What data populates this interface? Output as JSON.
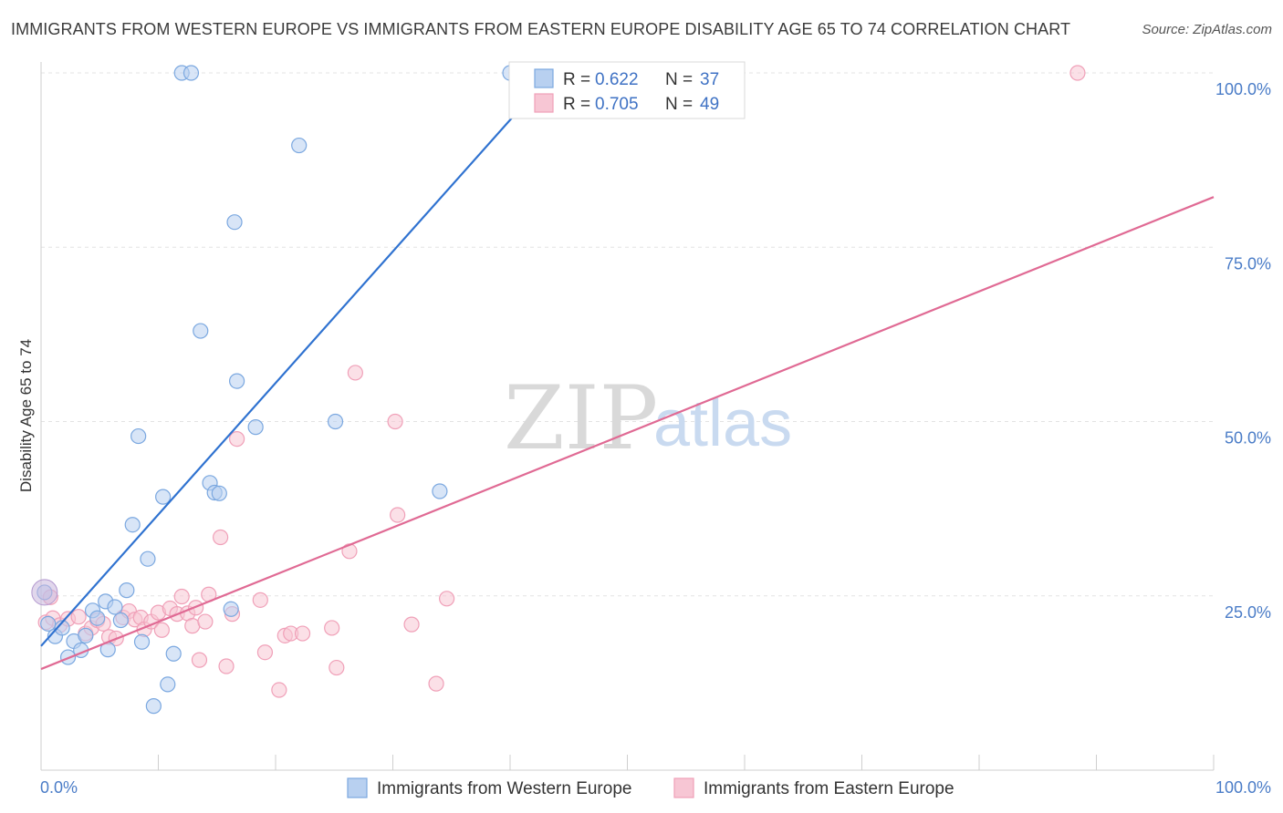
{
  "title": "IMMIGRANTS FROM WESTERN EUROPE VS IMMIGRANTS FROM EASTERN EUROPE DISABILITY AGE 65 TO 74 CORRELATION CHART",
  "source": "Source: ZipAtlas.com",
  "watermark": {
    "zip": "ZIP",
    "atlas": "atlas"
  },
  "colors": {
    "western": "#7ba8e0",
    "western_fill": "#b8d0f0",
    "western_line": "#2f72d0",
    "eastern": "#f0a0b8",
    "eastern_fill": "#f7c6d4",
    "eastern_line": "#e06a94"
  },
  "legend": {
    "rows": [
      {
        "r_label": "R =",
        "r_value": "0.622",
        "n_label": "N =",
        "n_value": "37"
      },
      {
        "r_label": "R =",
        "r_value": "0.705",
        "n_label": "N =",
        "n_value": "49"
      }
    ]
  },
  "chart_data": {
    "type": "scatter",
    "title": "IMMIGRANTS FROM WESTERN EUROPE VS IMMIGRANTS FROM EASTERN EUROPE DISABILITY AGE 65 TO 74 CORRELATION CHART",
    "xlabel": "",
    "ylabel": "Disability Age 65 to 74",
    "xlim": [
      0,
      100
    ],
    "ylim": [
      0,
      105
    ],
    "x_tick_labels": [
      "0.0%",
      "100.0%"
    ],
    "y_ticks": [
      25,
      50,
      75,
      100
    ],
    "y_tick_labels": [
      "25.0%",
      "50.0%",
      "75.0%",
      "100.0%"
    ],
    "grid": true,
    "legend_position": "top-center",
    "series": [
      {
        "name": "Immigrants from Western Europe",
        "r": 0.622,
        "n": 37,
        "trendline": {
          "x": [
            0,
            40.5
          ],
          "y": [
            17.8,
            94.2
          ]
        },
        "points": [
          {
            "x": 0.3,
            "y": 25.5
          },
          {
            "x": 0.6,
            "y": 21
          },
          {
            "x": 1.2,
            "y": 19.2
          },
          {
            "x": 1.8,
            "y": 20.4
          },
          {
            "x": 2.3,
            "y": 16.2
          },
          {
            "x": 2.8,
            "y": 18.5
          },
          {
            "x": 3.4,
            "y": 17.2
          },
          {
            "x": 3.8,
            "y": 19.3
          },
          {
            "x": 4.4,
            "y": 22.9
          },
          {
            "x": 4.8,
            "y": 21.8
          },
          {
            "x": 5.5,
            "y": 24.2
          },
          {
            "x": 5.7,
            "y": 17.3
          },
          {
            "x": 6.3,
            "y": 23.4
          },
          {
            "x": 6.8,
            "y": 21.5
          },
          {
            "x": 7.3,
            "y": 25.8
          },
          {
            "x": 7.8,
            "y": 35.2
          },
          {
            "x": 8.3,
            "y": 47.9
          },
          {
            "x": 8.6,
            "y": 18.4
          },
          {
            "x": 9.1,
            "y": 30.3
          },
          {
            "x": 9.6,
            "y": 9.2
          },
          {
            "x": 10.4,
            "y": 39.2
          },
          {
            "x": 10.8,
            "y": 12.3
          },
          {
            "x": 11.3,
            "y": 16.7
          },
          {
            "x": 12.0,
            "y": 100
          },
          {
            "x": 12.8,
            "y": 100
          },
          {
            "x": 13.6,
            "y": 63
          },
          {
            "x": 14.4,
            "y": 41.2
          },
          {
            "x": 14.8,
            "y": 39.8
          },
          {
            "x": 15.2,
            "y": 39.7
          },
          {
            "x": 16.2,
            "y": 23.1
          },
          {
            "x": 16.5,
            "y": 78.6
          },
          {
            "x": 16.7,
            "y": 55.8
          },
          {
            "x": 18.3,
            "y": 49.2
          },
          {
            "x": 22.0,
            "y": 89.6
          },
          {
            "x": 25.1,
            "y": 50
          },
          {
            "x": 34.0,
            "y": 40
          },
          {
            "x": 40.0,
            "y": 100
          }
        ]
      },
      {
        "name": "Immigrants from Eastern Europe",
        "r": 0.705,
        "n": 49,
        "trendline": {
          "x": [
            0,
            100
          ],
          "y": [
            14.5,
            82.2
          ]
        },
        "points": [
          {
            "x": 0.4,
            "y": 21.2
          },
          {
            "x": 1.0,
            "y": 21.8
          },
          {
            "x": 1.6,
            "y": 20.8
          },
          {
            "x": 2.3,
            "y": 21.7
          },
          {
            "x": 3.2,
            "y": 22
          },
          {
            "x": 3.8,
            "y": 19.6
          },
          {
            "x": 4.3,
            "y": 20.4
          },
          {
            "x": 4.8,
            "y": 21.5
          },
          {
            "x": 5.3,
            "y": 21
          },
          {
            "x": 5.8,
            "y": 19.1
          },
          {
            "x": 6.4,
            "y": 18.9
          },
          {
            "x": 7.0,
            "y": 21.9
          },
          {
            "x": 7.5,
            "y": 22.8
          },
          {
            "x": 8.0,
            "y": 21.6
          },
          {
            "x": 8.5,
            "y": 21.9
          },
          {
            "x": 8.8,
            "y": 20.2
          },
          {
            "x": 9.4,
            "y": 21.3
          },
          {
            "x": 10.0,
            "y": 22.6
          },
          {
            "x": 10.3,
            "y": 20.1
          },
          {
            "x": 11.0,
            "y": 23.2
          },
          {
            "x": 11.6,
            "y": 22.4
          },
          {
            "x": 12.0,
            "y": 24.9
          },
          {
            "x": 12.5,
            "y": 22.5
          },
          {
            "x": 12.9,
            "y": 20.7
          },
          {
            "x": 13.2,
            "y": 23.3
          },
          {
            "x": 13.5,
            "y": 15.8
          },
          {
            "x": 14.0,
            "y": 21.3
          },
          {
            "x": 14.3,
            "y": 25.2
          },
          {
            "x": 15.3,
            "y": 33.4
          },
          {
            "x": 15.8,
            "y": 14.9
          },
          {
            "x": 16.3,
            "y": 22.4
          },
          {
            "x": 16.7,
            "y": 47.5
          },
          {
            "x": 18.7,
            "y": 24.4
          },
          {
            "x": 19.1,
            "y": 16.9
          },
          {
            "x": 20.3,
            "y": 11.5
          },
          {
            "x": 20.8,
            "y": 19.3
          },
          {
            "x": 21.3,
            "y": 19.6
          },
          {
            "x": 22.3,
            "y": 19.6
          },
          {
            "x": 24.8,
            "y": 20.4
          },
          {
            "x": 25.2,
            "y": 14.7
          },
          {
            "x": 26.8,
            "y": 57
          },
          {
            "x": 30.2,
            "y": 50
          },
          {
            "x": 31.6,
            "y": 20.9
          },
          {
            "x": 33.7,
            "y": 12.4
          },
          {
            "x": 34.6,
            "y": 24.6
          },
          {
            "x": 30.4,
            "y": 36.6
          },
          {
            "x": 26.3,
            "y": 31.4
          },
          {
            "x": 88.4,
            "y": 100
          },
          {
            "x": 0.8,
            "y": 24.8
          }
        ]
      }
    ]
  }
}
